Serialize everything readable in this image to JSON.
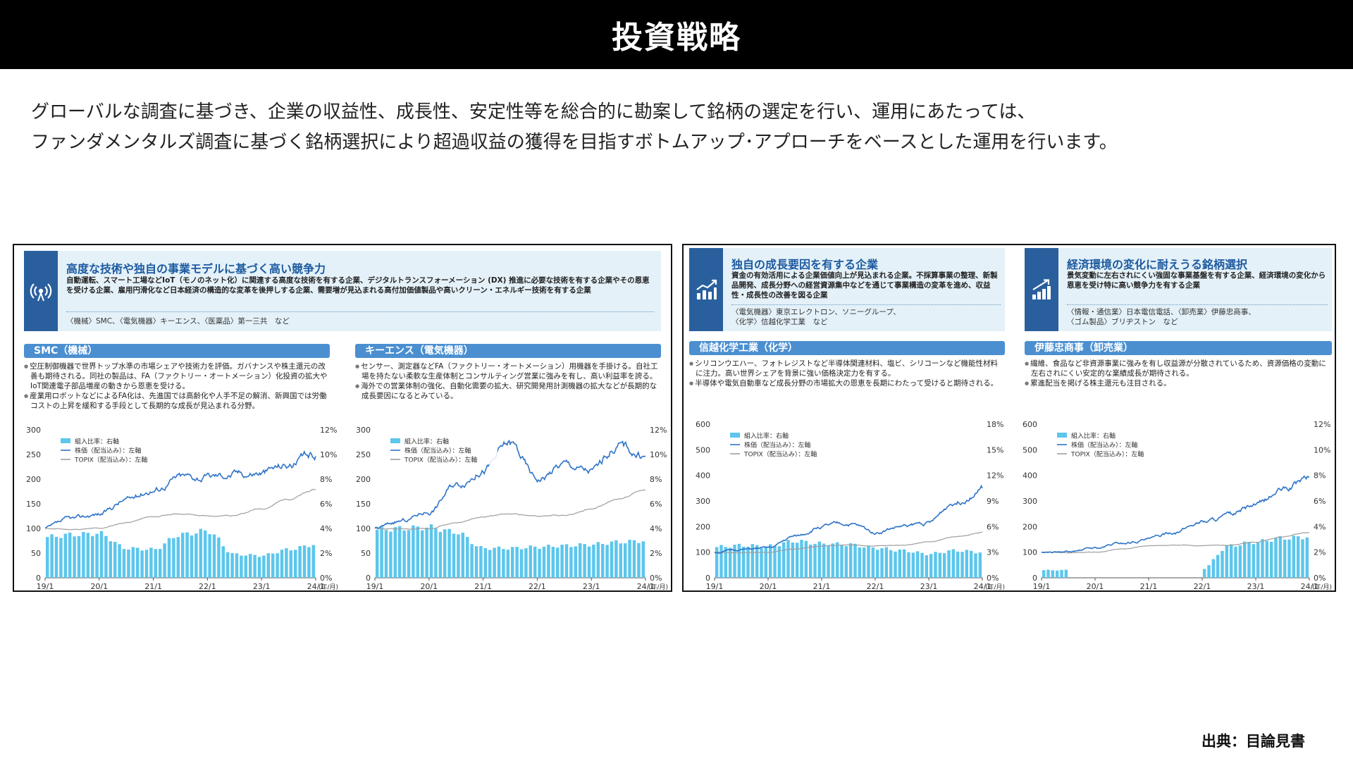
{
  "header": {
    "title": "投資戦略"
  },
  "intro": {
    "line1": "グローバルな調査に基づき、企業の収益性、成長性、安定性等を総合的に勘案して銘柄の選定を行い、運用にあたっては、",
    "line2": "ファンダメンタルズ調査に基づく銘柄選択により超過収益の獲得を目指すボトムアップ･アプローチをベースとした運用を行います。"
  },
  "source": "出典：目論見書",
  "colors": {
    "accent_blue": "#4b8fd0",
    "bar_blue": "#5cc6ec",
    "stock_line": "#2f74c8",
    "topix_line": "#9e9e9e",
    "icon_navy": "#2a5f9e",
    "feature_bg": "#e4f1f8"
  },
  "features": [
    {
      "title": "高度な技術や独自の事業モデルに基づく高い競争力",
      "icon": "radar-signal-icon",
      "desc": "自動運転、スマート工場などIoT（モノのネット化）に関連する高度な技術を有する企業、デジタルトランスフォーメーション (DX) 推進に必要な技術を有する企業やその恩恵を受ける企業、雇用円滑化など日本経済の構造的な変革を後押しする企業、需要増が見込まれる高付加価値製品や高いクリーン・エネルギー技術を有する企業",
      "examples": "〈機械〉SMC、〈電気機器〉キーエンス、〈医薬品〉第一三共　など"
    },
    {
      "title": "独自の成長要因を有する企業",
      "icon": "growth-chart-icon",
      "desc": "資金の有効活用による企業価値向上が見込まれる企業。不採算事業の整理、新製品開発、成長分野への経営資源集中などを通じて事業構造の変革を進め、収益性・成長性の改善を図る企業",
      "examples1": "〈電気機器〉東京エレクトロン、ソニーグループ、",
      "examples2": "〈化学〉信越化学工業　など"
    },
    {
      "title": "経済環境の変化に耐えうる銘柄選択",
      "icon": "rising-bars-icon",
      "desc": "景気変動に左右されにくい強固な事業基盤を有する企業、経済環境の変化から恩恵を受け特に高い競争力を有する企業",
      "examples1": "〈情報・通信業〉日本電信電話、〈卸売業〉伊藤忠商事、",
      "examples2": "〈ゴム製品〉ブリヂストン　など"
    }
  ],
  "panels": [
    {
      "heading": "SMC（機械）",
      "bullets": [
        "空圧制御機器で世界トップ水準の市場シェアや技術力を評価。ガバナンスや株主還元の改善も期待される。同社の製品は、FA（ファクトリー・オートメーション）化投資の拡大やIoT関連電子部品増産の動きから恩恵を受ける。",
        "産業用ロボットなどによるFA化は、先進国では高齢化や人手不足の解消、新興国では労働コストの上昇を緩和する手段として長期的な成長が見込まれる分野。"
      ]
    },
    {
      "heading": "キーエンス（電気機器）",
      "bullets": [
        "センサー、測定器などFA（ファクトリー・オートメーション）用機器を手掛ける。自社工場を持たない柔軟な生産体制とコンサルティング営業に強みを有し、高い利益率を誇る。",
        "海外での営業体制の強化、自動化需要の拡大、研究開発用計測機器の拡大などが長期的な成長要因になるとみている。"
      ]
    },
    {
      "heading": "信越化学工業（化学）",
      "bullets": [
        "シリコンウエハー、フォトレジストなど半導体関連材料、塩ビ、シリコーンなど機能性材料に注力。高い世界シェアを背景に強い価格決定力を有する。",
        "半導体や電気自動車など成長分野の市場拡大の恩恵を長期にわたって受けると期待される。"
      ]
    },
    {
      "heading": "伊藤忠商事（卸売業）",
      "bullets": [
        "繊維、食品など非資源事業に強みを有し収益源が分散されているため、資源価格の変動に左右されにくい安定的な業績成長が期待される。",
        "累進配当を掲げる株主還元も注目される。"
      ]
    }
  ],
  "chart_data": [
    {
      "type": "bar+line",
      "title": "SMC（機械）",
      "legend": [
        "組入比率：右軸",
        "株価（配当込み）：左軸",
        "TOPIX（配当込み）：左軸"
      ],
      "x_tick_labels": [
        "19/1",
        "20/1",
        "21/1",
        "22/1",
        "23/1",
        "24/1"
      ],
      "x_unit": "(年/月)",
      "y_left_ticks": [
        "0",
        "50",
        "100",
        "150",
        "200",
        "250",
        "300"
      ],
      "y_left_range": [
        0,
        300
      ],
      "y_right_ticks": [
        "0%",
        "2%",
        "4%",
        "6%",
        "8%",
        "10%",
        "12%"
      ],
      "y_right_range": [
        0,
        12
      ],
      "x_years": [
        0,
        0.5,
        1,
        1.5,
        2,
        2.5,
        3,
        3.5,
        4,
        4.5,
        5
      ],
      "stock_knots": [
        100,
        118,
        130,
        158,
        180,
        205,
        205,
        212,
        215,
        230,
        248
      ],
      "topix_knots": [
        100,
        98,
        100,
        112,
        124,
        130,
        125,
        127,
        140,
        160,
        178
      ],
      "weight_knots": [
        3.3,
        3.5,
        3.6,
        2.4,
        2.3,
        3.5,
        3.8,
        1.9,
        1.8,
        2.3,
        2.7
      ]
    },
    {
      "type": "bar+line",
      "title": "キーエンス（電気機器）",
      "legend": [
        "組入比率：右軸",
        "株価（配当込み）：左軸",
        "TOPIX（配当込み）：左軸"
      ],
      "x_tick_labels": [
        "19/1",
        "20/1",
        "21/1",
        "22/1",
        "23/1",
        "24/1"
      ],
      "x_unit": "(年/月)",
      "y_left_ticks": [
        "0",
        "50",
        "100",
        "150",
        "200",
        "250",
        "300"
      ],
      "y_left_range": [
        0,
        300
      ],
      "y_right_ticks": [
        "0%",
        "2%",
        "4%",
        "6%",
        "8%",
        "10%",
        "12%"
      ],
      "y_right_range": [
        0,
        12
      ],
      "x_years": [
        0,
        0.5,
        1,
        1.5,
        2,
        2.5,
        3,
        3.5,
        4,
        4.5,
        5
      ],
      "stock_knots": [
        100,
        115,
        135,
        190,
        220,
        270,
        200,
        230,
        215,
        270,
        245
      ],
      "topix_knots": [
        100,
        98,
        100,
        112,
        124,
        130,
        125,
        127,
        140,
        160,
        178
      ],
      "weight_knots": [
        3.9,
        4.0,
        4.1,
        3.7,
        2.4,
        2.4,
        2.5,
        2.6,
        2.7,
        2.9,
        3.0
      ]
    },
    {
      "type": "bar+line",
      "title": "信越化学工業（化学）",
      "legend": [
        "組入比率：右軸",
        "株価（配当込み）：左軸",
        "TOPIX（配当込み）：左軸"
      ],
      "x_tick_labels": [
        "19/1",
        "20/1",
        "21/1",
        "22/1",
        "23/1",
        "24/1"
      ],
      "x_unit": "(年/月)",
      "y_left_ticks": [
        "0",
        "100",
        "200",
        "300",
        "400",
        "500",
        "600"
      ],
      "y_left_range": [
        0,
        600
      ],
      "y_right_ticks": [
        "0%",
        "3%",
        "6%",
        "9%",
        "12%",
        "15%",
        "18%"
      ],
      "y_right_range": [
        0,
        18
      ],
      "x_years": [
        0,
        0.5,
        1,
        1.5,
        2,
        2.5,
        3,
        3.5,
        4,
        4.5,
        5
      ],
      "stock_knots": [
        100,
        110,
        115,
        160,
        200,
        210,
        180,
        200,
        215,
        300,
        350
      ],
      "topix_knots": [
        100,
        98,
        100,
        112,
        124,
        130,
        125,
        127,
        140,
        160,
        178
      ],
      "weight_knots": [
        3.6,
        3.8,
        3.7,
        4.3,
        4.0,
        3.9,
        3.5,
        3.2,
        2.8,
        3.2,
        3.0
      ]
    },
    {
      "type": "bar+line",
      "title": "伊藤忠商事（卸売業）",
      "legend": [
        "組入比率：右軸",
        "株価（配当込み）：左軸",
        "TOPIX（配当込み）：左軸"
      ],
      "x_tick_labels": [
        "19/1",
        "20/1",
        "21/1",
        "22/1",
        "23/1",
        "24/1"
      ],
      "x_unit": "(年/月)",
      "y_left_ticks": [
        "0",
        "100",
        "200",
        "300",
        "400",
        "500",
        "600"
      ],
      "y_left_range": [
        0,
        600
      ],
      "y_right_ticks": [
        "0%",
        "2%",
        "4%",
        "6%",
        "8%",
        "10%",
        "12%"
      ],
      "y_right_range": [
        0,
        12
      ],
      "x_years": [
        0,
        0.5,
        1,
        1.5,
        2,
        2.5,
        3,
        3.5,
        4,
        4.5,
        5
      ],
      "stock_knots": [
        100,
        100,
        115,
        135,
        150,
        180,
        220,
        240,
        280,
        340,
        390
      ],
      "topix_knots": [
        100,
        98,
        100,
        112,
        124,
        130,
        125,
        127,
        140,
        160,
        178
      ],
      "weight_knots": [
        0.6,
        0.6,
        null,
        null,
        null,
        null,
        0.7,
        2.5,
        2.8,
        3.1,
        3.2
      ]
    }
  ]
}
